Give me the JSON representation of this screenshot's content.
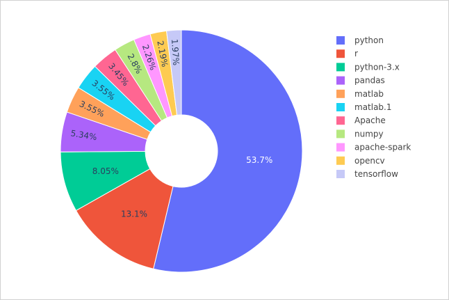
{
  "chart_data": {
    "type": "pie",
    "hole": true,
    "title": "",
    "legend_position": "right",
    "categories": [
      "python",
      "r",
      "python-3.x",
      "pandas",
      "matlab",
      "matlab.1",
      "Apache",
      "numpy",
      "apache-spark",
      "opencv",
      "tensorflow"
    ],
    "values": [
      53.7,
      13.1,
      8.05,
      5.34,
      3.55,
      3.55,
      3.45,
      2.8,
      2.26,
      2.19,
      1.97
    ],
    "labels": [
      "53.7%",
      "13.1%",
      "8.05%",
      "5.34%",
      "3.55%",
      "3.55%",
      "3.45%",
      "2.8%",
      "2.26%",
      "2.19%",
      "1.97%"
    ],
    "colors": [
      "#636efa",
      "#EF553B",
      "#00cc96",
      "#ab63fa",
      "#FFA15A",
      "#19d3f3",
      "#FF6692",
      "#B6E880",
      "#FF97FF",
      "#FECB52",
      "#c6c9f7"
    ]
  }
}
